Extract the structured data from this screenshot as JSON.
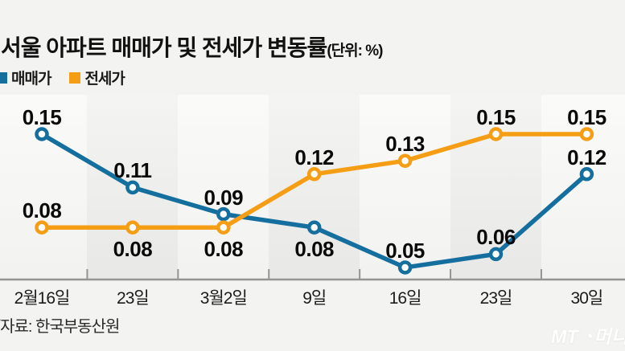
{
  "title": {
    "main": "서울 아파트 매매가 및 전세가 변동률",
    "unit": "(단위: %)"
  },
  "legend": [
    {
      "label": "매매가",
      "color": "#146f9e"
    },
    {
      "label": "전세가",
      "color": "#f59e15"
    }
  ],
  "source": {
    "mark": "*",
    "text": "자료: 한국부동산원"
  },
  "watermark": {
    "mt": "MT",
    "symbol": "◔",
    "name": "머니"
  },
  "colors": {
    "sale_line": "#146f9e",
    "jeonse_line": "#f59e15",
    "axis": "#949494",
    "label_text": "#0a0a0a",
    "background": "#f3f3f1"
  },
  "chart_data": {
    "type": "line",
    "title": "서울 아파트 매매가 및 전세가 변동률",
    "unit": "%",
    "categories": [
      "2월16일",
      "23일",
      "3월2일",
      "9일",
      "16일",
      "23일",
      "30일"
    ],
    "series": [
      {
        "name": "매매가",
        "color": "#146f9e",
        "values": [
          0.15,
          0.11,
          0.09,
          0.08,
          0.05,
          0.06,
          0.12
        ],
        "label_positions": [
          "above",
          "above",
          "above",
          "below",
          "above",
          "above",
          "above"
        ]
      },
      {
        "name": "전세가",
        "color": "#f59e15",
        "values": [
          0.08,
          0.08,
          0.08,
          0.12,
          0.13,
          0.15,
          0.15
        ],
        "label_positions": [
          "above",
          "below",
          "below",
          "above",
          "above",
          "above",
          "above"
        ]
      }
    ],
    "ylim": [
      0.03,
      0.17
    ],
    "grid": false,
    "legend_position": "top-left",
    "value_labels": true,
    "source": "자료: 한국부동산원"
  }
}
